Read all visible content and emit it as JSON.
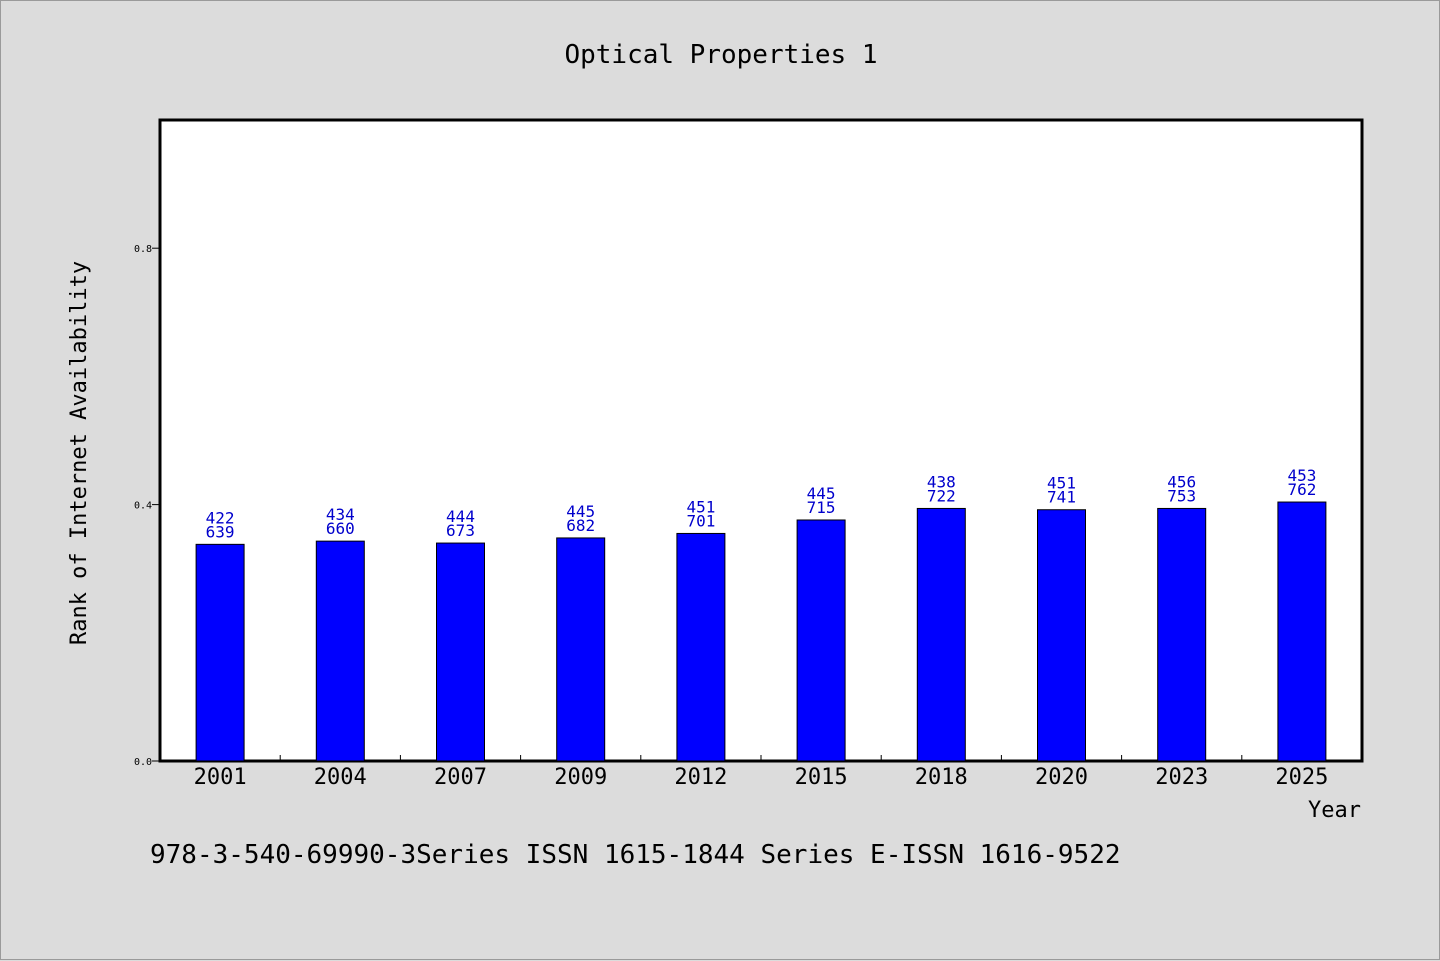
{
  "chart_data": {
    "type": "bar",
    "title": "Optical Properties 1",
    "xlabel": "Year",
    "ylabel": "Rank of Internet Availability",
    "categories": [
      "2001",
      "2004",
      "2007",
      "2009",
      "2012",
      "2015",
      "2018",
      "2020",
      "2023",
      "2025"
    ],
    "values": [
      0.338,
      0.343,
      0.34,
      0.348,
      0.355,
      0.376,
      0.394,
      0.392,
      0.394,
      0.404
    ],
    "label_top": [
      "422",
      "434",
      "444",
      "445",
      "451",
      "445",
      "438",
      "451",
      "456",
      "453"
    ],
    "label_bottom": [
      "639",
      "660",
      "673",
      "682",
      "701",
      "715",
      "722",
      "741",
      "753",
      "762"
    ],
    "yticks": [
      "0.0",
      "0.4",
      "0.8"
    ],
    "ytick_values": [
      0.0,
      0.4,
      0.8
    ],
    "ylim": [
      0,
      1.0
    ],
    "grid": false,
    "bar_color": "#0000ff",
    "label_color": "#0000cc"
  },
  "footer": "978-3-540-69990-3Series ISSN 1615-1844 Series E-ISSN 1616-9522"
}
